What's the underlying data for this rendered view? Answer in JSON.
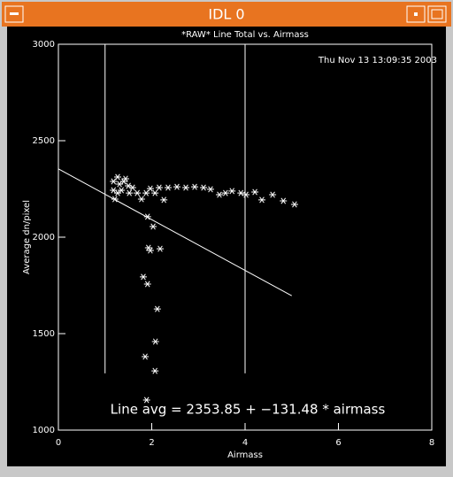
{
  "window": {
    "title": "IDL 0"
  },
  "chart_data": {
    "type": "scatter",
    "title": "*RAW* Line Total vs. Airmass",
    "annotations": [
      "Thu Nov 13 13:09:35 2003",
      "Line avg = 2353.85 + −131.48 * airmass"
    ],
    "xlabel": "Airmass",
    "ylabel": "Average dn/pixel",
    "xlim": [
      0,
      8
    ],
    "xticks": [
      0,
      2,
      4,
      6,
      8
    ],
    "ylim": [
      1000,
      3000
    ],
    "yticks": [
      1000,
      1500,
      2000,
      2500,
      3000
    ],
    "color": "#ffffff",
    "series": [
      {
        "x": [
          1.27,
          1.35,
          1.21,
          1.4,
          1.5,
          1.59,
          1.69,
          1.78,
          1.88,
          1.97,
          2.07,
          2.16,
          2.26,
          2.35,
          2.54,
          2.73,
          2.92,
          3.11,
          3.26,
          3.45,
          3.58,
          3.72,
          3.91,
          4.02,
          4.21,
          4.36,
          4.59,
          4.82,
          5.06,
          1.91,
          2.03,
          1.93,
          1.97,
          2.18,
          1.82,
          1.91,
          2.12,
          2.08,
          1.86,
          2.07,
          1.89,
          1.18,
          1.31,
          1.44,
          1.18,
          1.52,
          1.27
        ],
        "values": [
          2312,
          2243,
          2197,
          2289,
          2266,
          2257,
          2229,
          2197,
          2229,
          2252,
          2229,
          2257,
          2193,
          2257,
          2261,
          2257,
          2261,
          2257,
          2248,
          2220,
          2229,
          2239,
          2229,
          2220,
          2234,
          2193,
          2220,
          2188,
          2170,
          2106,
          2055,
          1945,
          1931,
          1940,
          1794,
          1757,
          1628,
          1459,
          1381,
          1307,
          1156,
          2289,
          2275,
          2303,
          2243,
          2229,
          2229
        ]
      },
      {
        "type": "line",
        "x": [
          0,
          5
        ],
        "values": [
          2353.85,
          1696.45
        ]
      }
    ],
    "vlines": {
      "x": [
        1,
        4
      ],
      "y": [
        1294,
        3000
      ]
    }
  }
}
